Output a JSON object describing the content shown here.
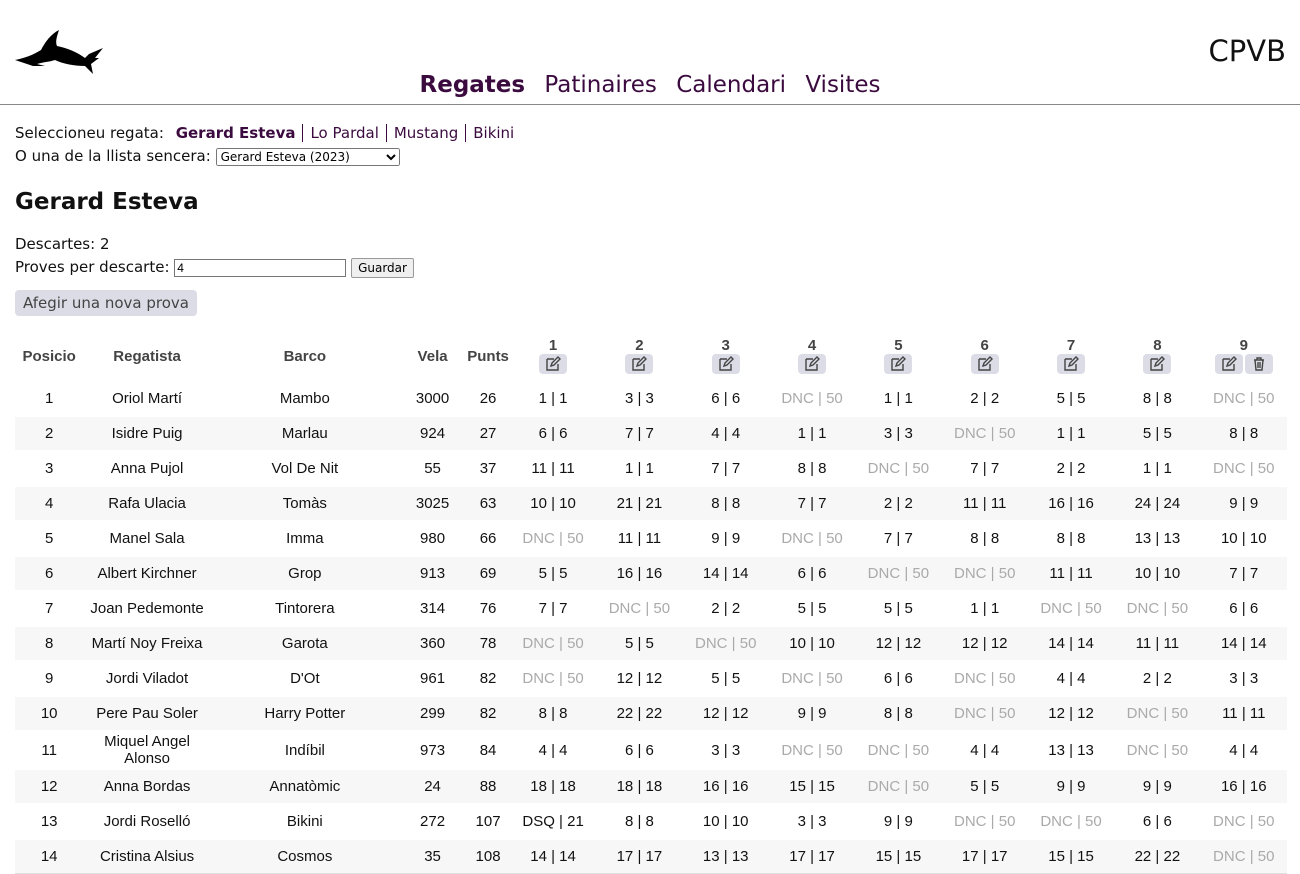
{
  "brand": "CPVB",
  "nav": [
    "Regates",
    "Patinaires",
    "Calendari",
    "Visites"
  ],
  "selector": {
    "label": "Seleccioneu regata:",
    "regates": [
      "Gerard Esteva",
      "Lo Pardal",
      "Mustang",
      "Bikini"
    ],
    "list_label": "O una de la llista sencera:",
    "list_selected": "Gerard Esteva (2023)"
  },
  "title": "Gerard Esteva",
  "descartes": "Descartes: 2",
  "proves_label": "Proves per descarte:",
  "proves_value": "4",
  "save_label": "Guardar",
  "add_label": "Afegir una nova prova",
  "table": {
    "headers": [
      "Posicio",
      "Regatista",
      "Barco",
      "Vela",
      "Punts"
    ],
    "races": [
      "1",
      "2",
      "3",
      "4",
      "5",
      "6",
      "7",
      "8",
      "9"
    ],
    "rows": [
      [
        "1",
        "Oriol Martí",
        "Mambo",
        "3000",
        "26",
        "1 | 1",
        "3 | 3",
        "6 | 6",
        "DNC | 50",
        "1 | 1",
        "2 | 2",
        "5 | 5",
        "8 | 8",
        "DNC | 50"
      ],
      [
        "2",
        "Isidre Puig",
        "Marlau",
        "924",
        "27",
        "6 | 6",
        "7 | 7",
        "4 | 4",
        "1 | 1",
        "3 | 3",
        "DNC | 50",
        "1 | 1",
        "5 | 5",
        "8 | 8"
      ],
      [
        "3",
        "Anna Pujol",
        "Vol De Nit",
        "55",
        "37",
        "11 | 11",
        "1 | 1",
        "7 | 7",
        "8 | 8",
        "DNC | 50",
        "7 | 7",
        "2 | 2",
        "1 | 1",
        "DNC | 50"
      ],
      [
        "4",
        "Rafa Ulacia",
        "Tomàs",
        "3025",
        "63",
        "10 | 10",
        "21 | 21",
        "8 | 8",
        "7 | 7",
        "2 | 2",
        "11 | 11",
        "16 | 16",
        "24 | 24",
        "9 | 9"
      ],
      [
        "5",
        "Manel Sala",
        "Imma",
        "980",
        "66",
        "DNC | 50",
        "11 | 11",
        "9 | 9",
        "DNC | 50",
        "7 | 7",
        "8 | 8",
        "8 | 8",
        "13 | 13",
        "10 | 10"
      ],
      [
        "6",
        "Albert Kirchner",
        "Grop",
        "913",
        "69",
        "5 | 5",
        "16 | 16",
        "14 | 14",
        "6 | 6",
        "DNC | 50",
        "DNC | 50",
        "11 | 11",
        "10 | 10",
        "7 | 7"
      ],
      [
        "7",
        "Joan Pedemonte",
        "Tintorera",
        "314",
        "76",
        "7 | 7",
        "DNC | 50",
        "2 | 2",
        "5 | 5",
        "5 | 5",
        "1 | 1",
        "DNC | 50",
        "DNC | 50",
        "6 | 6"
      ],
      [
        "8",
        "Martí Noy Freixa",
        "Garota",
        "360",
        "78",
        "DNC | 50",
        "5 | 5",
        "DNC | 50",
        "10 | 10",
        "12 | 12",
        "12 | 12",
        "14 | 14",
        "11 | 11",
        "14 | 14"
      ],
      [
        "9",
        "Jordi Viladot",
        "D'Ot",
        "961",
        "82",
        "DNC | 50",
        "12 | 12",
        "5 | 5",
        "DNC | 50",
        "6 | 6",
        "DNC | 50",
        "4 | 4",
        "2 | 2",
        "3 | 3"
      ],
      [
        "10",
        "Pere Pau Soler",
        "Harry Potter",
        "299",
        "82",
        "8 | 8",
        "22 | 22",
        "12 | 12",
        "9 | 9",
        "8 | 8",
        "DNC | 50",
        "12 | 12",
        "DNC | 50",
        "11 | 11"
      ],
      [
        "11",
        "Miquel Angel Alonso",
        "Indíbil",
        "973",
        "84",
        "4 | 4",
        "6 | 6",
        "3 | 3",
        "DNC | 50",
        "DNC | 50",
        "4 | 4",
        "13 | 13",
        "DNC | 50",
        "4 | 4"
      ],
      [
        "12",
        "Anna Bordas",
        "Annatòmic",
        "24",
        "88",
        "18 | 18",
        "18 | 18",
        "16 | 16",
        "15 | 15",
        "DNC | 50",
        "5 | 5",
        "9 | 9",
        "9 | 9",
        "16 | 16"
      ],
      [
        "13",
        "Jordi Roselló",
        "Bikini",
        "272",
        "107",
        "DSQ | 21",
        "8 | 8",
        "10 | 10",
        "3 | 3",
        "9 | 9",
        "DNC | 50",
        "DNC | 50",
        "6 | 6",
        "DNC | 50"
      ],
      [
        "14",
        "Cristina Alsius",
        "Cosmos",
        "35",
        "108",
        "14 | 14",
        "17 | 17",
        "13 | 13",
        "17 | 17",
        "15 | 15",
        "17 | 17",
        "15 | 15",
        "22 | 22",
        "DNC | 50"
      ]
    ]
  },
  "colors": {
    "accent": "#3b0a3f",
    "button_bg": "#dcdce6",
    "dnc": "#aaaaaa"
  }
}
